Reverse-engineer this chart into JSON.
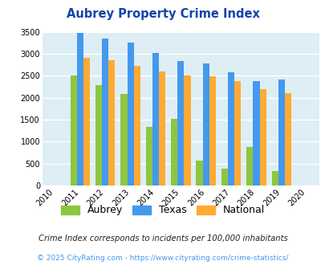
{
  "title": "Aubrey Property Crime Index",
  "plot_years": [
    2011,
    2012,
    2013,
    2014,
    2015,
    2016,
    2017,
    2018,
    2019
  ],
  "x_ticks_all": [
    2010,
    2011,
    2012,
    2013,
    2014,
    2015,
    2016,
    2017,
    2018,
    2019,
    2020
  ],
  "aubrey": [
    2500,
    2280,
    2090,
    1340,
    1520,
    570,
    380,
    870,
    330
  ],
  "texas": [
    3470,
    3350,
    3250,
    3020,
    2840,
    2780,
    2580,
    2380,
    2410
  ],
  "national": [
    2900,
    2860,
    2720,
    2590,
    2500,
    2480,
    2380,
    2200,
    2110
  ],
  "aubrey_color": "#8dc63f",
  "texas_color": "#4499ee",
  "national_color": "#ffaa33",
  "bg_color": "#ddeef5",
  "grid_color": "#ffffff",
  "ylim": [
    0,
    3500
  ],
  "yticks": [
    0,
    500,
    1000,
    1500,
    2000,
    2500,
    3000,
    3500
  ],
  "footnote1": "Crime Index corresponds to incidents per 100,000 inhabitants",
  "footnote2": "© 2025 CityRating.com - https://www.cityrating.com/crime-statistics/",
  "title_color": "#1144aa",
  "footnote1_color": "#222222",
  "footnote2_color": "#4499ee"
}
